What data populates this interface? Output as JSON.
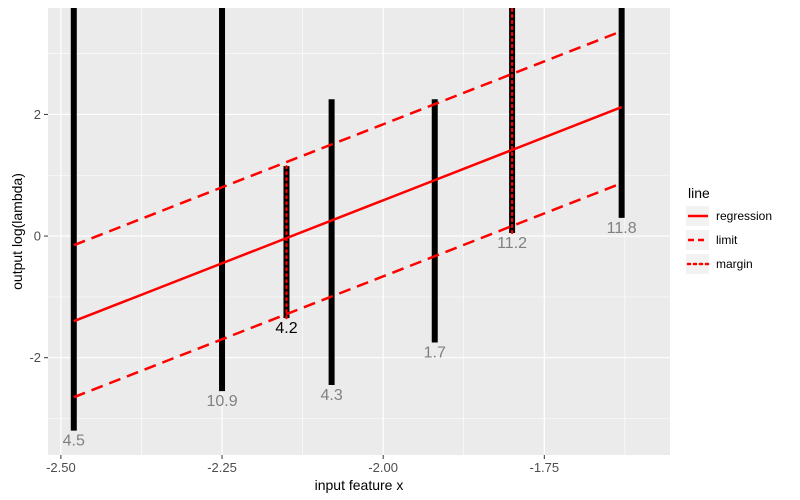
{
  "chart_data": {
    "type": "line",
    "xlabel": "input feature x",
    "ylabel": "output log(lambda)",
    "xlim": [
      -2.52,
      -1.555
    ],
    "ylim": [
      -3.6,
      3.75
    ],
    "x_ticks": [
      -2.5,
      -2.25,
      -2.0,
      -1.75
    ],
    "x_tick_labels": [
      "-2.50",
      "-2.25",
      "-2.00",
      "-1.75"
    ],
    "y_ticks": [
      -2,
      0,
      2
    ],
    "y_tick_labels": [
      "-2",
      "0",
      "2"
    ],
    "grid": true,
    "legend": {
      "title": "line",
      "placement": "right",
      "entries": [
        {
          "label": "regression",
          "style": "solid"
        },
        {
          "label": "limit",
          "style": "dashed"
        },
        {
          "label": "margin",
          "style": "dotted"
        }
      ]
    },
    "lines": [
      {
        "name": "regression",
        "style": "solid",
        "x": [
          -2.48,
          -1.63
        ],
        "y": [
          -1.4,
          2.12
        ]
      },
      {
        "name": "limit",
        "style": "dashed",
        "x": [
          -2.48,
          -1.63
        ],
        "y": [
          -0.15,
          3.37
        ]
      },
      {
        "name": "limit",
        "style": "dashed",
        "x": [
          -2.48,
          -1.63
        ],
        "y": [
          -2.65,
          0.87
        ]
      }
    ],
    "segments": [
      {
        "x": -2.48,
        "y0": -3.2,
        "y1": 3.75,
        "label": "4.5",
        "label_color": "#808080",
        "margin": false
      },
      {
        "x": -2.25,
        "y0": -2.55,
        "y1": 3.75,
        "label": "10.9",
        "label_color": "#808080",
        "margin": false
      },
      {
        "x": -2.15,
        "y0": -1.35,
        "y1": 1.15,
        "label": "4.2",
        "label_color": "#000000",
        "margin": true
      },
      {
        "x": -2.08,
        "y0": -2.45,
        "y1": 2.25,
        "label": "4.3",
        "label_color": "#808080",
        "margin": false
      },
      {
        "x": -1.92,
        "y0": -1.75,
        "y1": 2.25,
        "label": "1.7",
        "label_color": "#808080",
        "margin": false
      },
      {
        "x": -1.8,
        "y0": 0.05,
        "y1": 3.75,
        "label": "11.2",
        "label_color": "#808080",
        "margin": true
      },
      {
        "x": -1.63,
        "y0": 0.3,
        "y1": 3.75,
        "label": "11.8",
        "label_color": "#808080",
        "margin": false
      }
    ],
    "colors": {
      "line": "#ff0000",
      "segment": "#000000",
      "panel": "#ebebeb",
      "grid": "#ffffff"
    }
  }
}
